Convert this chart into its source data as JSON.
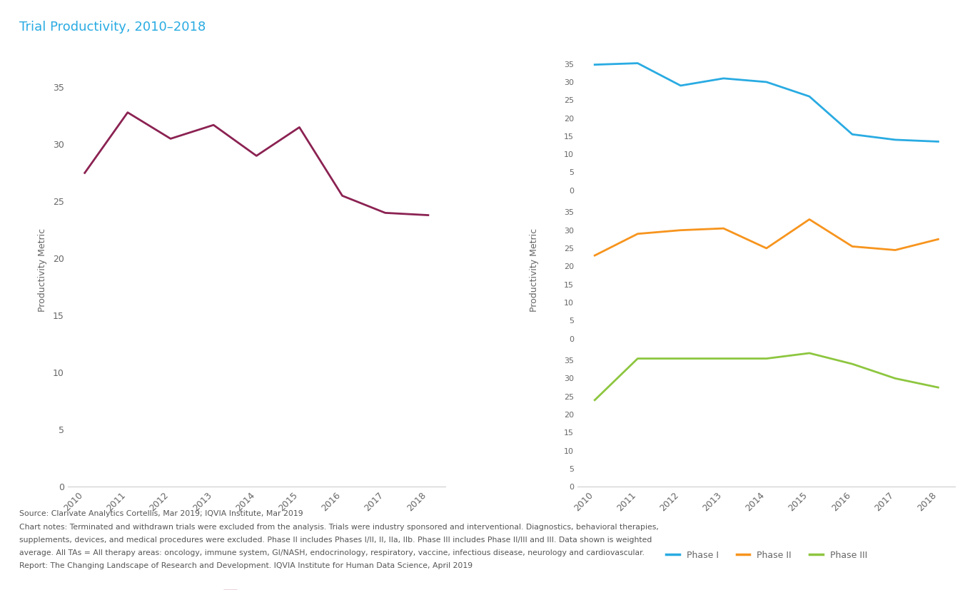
{
  "title": "Trial Productivity, 2010–2018",
  "title_color": "#29ABE2",
  "years": [
    2010,
    2011,
    2012,
    2013,
    2014,
    2015,
    2016,
    2017,
    2018
  ],
  "all_phases": [
    27.5,
    32.8,
    30.5,
    31.7,
    29.0,
    31.5,
    25.5,
    24.0,
    23.8
  ],
  "phase1": [
    34.8,
    35.2,
    29.0,
    31.0,
    30.0,
    26.0,
    15.5,
    14.0,
    13.5
  ],
  "phase2": [
    23.0,
    29.0,
    30.0,
    30.5,
    25.0,
    33.0,
    25.5,
    24.5,
    27.5
  ],
  "phase3": [
    24.0,
    35.5,
    35.5,
    35.5,
    35.5,
    37.0,
    34.0,
    30.0,
    27.5
  ],
  "all_phases_color": "#8B2252",
  "phase1_color": "#29ABE2",
  "phase2_color": "#F7941D",
  "phase3_color": "#8DC63F",
  "ylabel": "Productivity Metric",
  "left_yticks": [
    0,
    5,
    10,
    15,
    20,
    25,
    30,
    35
  ],
  "left_ylim": [
    0,
    38
  ],
  "right_yticks": [
    0,
    5,
    10,
    15,
    20,
    25,
    30,
    35
  ],
  "right_ylim": [
    0,
    38
  ],
  "source_text": "Source: Clarivate Analytics Cortellis, Mar 2019; IQVIA Institute, Mar 2019",
  "note_line1": "Chart notes: Terminated and withdrawn trials were excluded from the analysis. Trials were industry sponsored and interventional. Diagnostics, behavioral therapies,",
  "note_line2": "supplements, devices, and medical procedures were excluded. Phase II includes Phases I/II, II, IIa, IIb. Phase III includes Phase II/III and III. Data shown is weighted",
  "note_line3": "average. All TAs = All therapy areas: oncology, immune system, GI/NASH, endocrinology, respiratory, vaccine, infectious disease, neurology and cardiovascular.",
  "note_line4": "Report: The Changing Landscape of Research and Development. IQVIA Institute for Human Data Science, April 2019",
  "line_width": 2.0
}
